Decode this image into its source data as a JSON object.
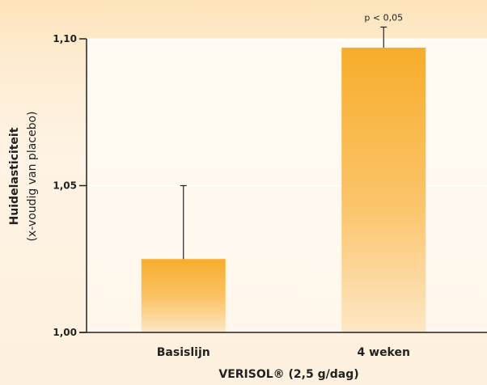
{
  "chart_data": {
    "type": "bar",
    "categories": [
      "Basislijn",
      "4 weken"
    ],
    "values": [
      1.025,
      1.097
    ],
    "error_upper": [
      1.05,
      1.104
    ],
    "ylim": [
      1.0,
      1.1
    ],
    "yticks": [
      "1,00",
      "1,05",
      "1,10"
    ],
    "ytick_values": [
      1.0,
      1.05,
      1.1
    ],
    "ylabel": "Huidelasticiteit",
    "ylabel_sub": "(x-voudig van placebo)",
    "xlabel": "VERISOL® (2,5 g/dag)",
    "annotation": "p < 0,05",
    "bar_color_top": "#f7ad2b",
    "bar_color_bottom": "#fde7c6",
    "grid": true
  }
}
